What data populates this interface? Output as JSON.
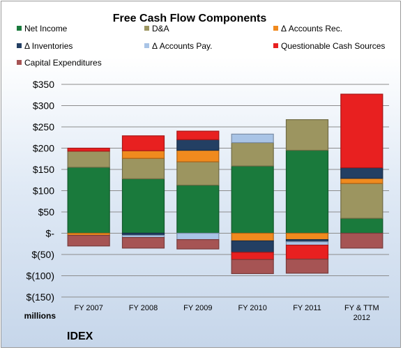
{
  "chart_data": {
    "type": "bar",
    "stacked": true,
    "title": "Free Cash Flow Components",
    "unit_label": "millions",
    "company": "IDEX",
    "categories": [
      "FY 2007",
      "FY 2008",
      "FY 2009",
      "FY 2010",
      "FY 2011",
      "FY & TTM|2012"
    ],
    "ylim": [
      -150,
      350
    ],
    "yticks": [
      {
        "v": 350,
        "label": "$350"
      },
      {
        "v": 300,
        "label": "$300"
      },
      {
        "v": 250,
        "label": "$250"
      },
      {
        "v": 200,
        "label": "$200"
      },
      {
        "v": 150,
        "label": "$150"
      },
      {
        "v": 100,
        "label": "$100"
      },
      {
        "v": 50,
        "label": "$50"
      },
      {
        "v": 0,
        "label": "$-"
      },
      {
        "v": -50,
        "label": "$(50)"
      },
      {
        "v": -100,
        "label": "$(100)"
      },
      {
        "v": -150,
        "label": "$(150)"
      }
    ],
    "grid": true,
    "legend_position": "top",
    "series": [
      {
        "name": "Net Income",
        "color": "#1a7a3c",
        "values": [
          155,
          128,
          113,
          158,
          195,
          35
        ]
      },
      {
        "name": "D&A",
        "color": "#9c9560",
        "values": [
          38,
          48,
          55,
          55,
          72,
          82
        ]
      },
      {
        "name": "Δ Accounts Rec.",
        "color": "#f08a1e",
        "values": [
          -5,
          18,
          27,
          -18,
          -15,
          12
        ]
      },
      {
        "name": "Δ Inventories",
        "color": "#233f63",
        "values": [
          0,
          -5,
          25,
          -27,
          -5,
          25
        ]
      },
      {
        "name": "Δ Accounts Pay.",
        "color": "#a9c4e6",
        "values": [
          0,
          -5,
          -15,
          20,
          -8,
          0
        ]
      },
      {
        "name": "Questionable Cash Sources",
        "color": "#e82020",
        "values": [
          7,
          35,
          20,
          -17,
          -33,
          173
        ]
      },
      {
        "name": "Capital Expenditures",
        "color": "#a65454",
        "values": [
          -25,
          -25,
          -22,
          -33,
          -33,
          -35
        ]
      }
    ]
  }
}
